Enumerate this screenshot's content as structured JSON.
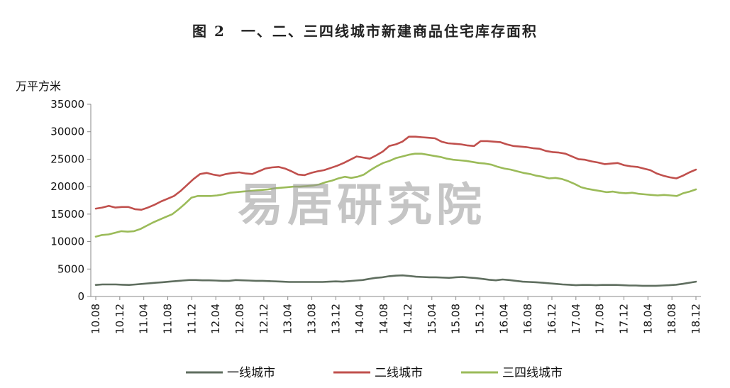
{
  "title": "图 2　一、二、三四线城市新建商品住宅库存面积",
  "watermark": "易居研究院",
  "chart_data": {
    "type": "line",
    "ylabel": "万平方米",
    "ylim": [
      0,
      35000
    ],
    "yticks": [
      0,
      5000,
      10000,
      15000,
      20000,
      25000,
      30000,
      35000
    ],
    "x_tick_labels": [
      "10.08",
      "10.12",
      "11.04",
      "11.08",
      "11.12",
      "12.04",
      "12.08",
      "12.12",
      "13.04",
      "13.08",
      "13.12",
      "14.04",
      "14.08",
      "14.12",
      "15.04",
      "15.08",
      "15.12",
      "16.04",
      "16.08",
      "16.12",
      "17.04",
      "17.08",
      "17.12",
      "18.04",
      "18.08",
      "18.12"
    ],
    "legend_position": "bottom",
    "grid": false,
    "series": [
      {
        "name": "一线城市",
        "color": "#5f6e5f",
        "values": [
          2100,
          2200,
          2200,
          2200,
          2150,
          2100,
          2200,
          2300,
          2400,
          2500,
          2600,
          2700,
          2800,
          2900,
          3000,
          3000,
          2950,
          2950,
          2900,
          2850,
          2850,
          3000,
          2950,
          2900,
          2850,
          2850,
          2800,
          2750,
          2700,
          2650,
          2650,
          2650,
          2650,
          2650,
          2650,
          2700,
          2750,
          2700,
          2800,
          2900,
          3000,
          3200,
          3400,
          3500,
          3700,
          3800,
          3850,
          3750,
          3600,
          3550,
          3500,
          3500,
          3450,
          3400,
          3500,
          3550,
          3450,
          3350,
          3200,
          3050,
          2950,
          3100,
          3000,
          2850,
          2700,
          2650,
          2600,
          2500,
          2400,
          2300,
          2200,
          2150,
          2050,
          2100,
          2100,
          2050,
          2100,
          2100,
          2100,
          2050,
          2000,
          2000,
          1950,
          1950,
          1950,
          2000,
          2050,
          2150,
          2300,
          2500,
          2700
        ]
      },
      {
        "name": "二线城市",
        "color": "#c0504d",
        "values": [
          16000,
          16200,
          16500,
          16200,
          16300,
          16300,
          15900,
          15800,
          16200,
          16700,
          17300,
          17800,
          18300,
          19200,
          20300,
          21400,
          22300,
          22500,
          22200,
          22000,
          22300,
          22500,
          22600,
          22400,
          22300,
          22800,
          23300,
          23500,
          23600,
          23300,
          22800,
          22200,
          22100,
          22500,
          22800,
          23000,
          23400,
          23800,
          24300,
          24900,
          25500,
          25300,
          25100,
          25700,
          26400,
          27400,
          27700,
          28200,
          29100,
          29100,
          29000,
          28900,
          28800,
          28200,
          27900,
          27800,
          27700,
          27500,
          27400,
          28300,
          28300,
          28200,
          28100,
          27700,
          27400,
          27300,
          27200,
          27000,
          26900,
          26500,
          26300,
          26200,
          26000,
          25500,
          25000,
          24900,
          24600,
          24400,
          24100,
          24200,
          24300,
          23900,
          23700,
          23600,
          23300,
          23000,
          22400,
          22000,
          21700,
          21500,
          22000,
          22600,
          23100
        ]
      },
      {
        "name": "三四线城市",
        "color": "#9bbb59",
        "values": [
          10900,
          11200,
          11300,
          11600,
          11900,
          11800,
          11900,
          12300,
          12900,
          13500,
          14000,
          14500,
          15000,
          15900,
          16900,
          18000,
          18300,
          18300,
          18300,
          18400,
          18600,
          18900,
          19000,
          19100,
          19200,
          19300,
          19400,
          19500,
          19700,
          19800,
          19900,
          20000,
          20000,
          20100,
          20200,
          20400,
          20800,
          21100,
          21500,
          21800,
          21600,
          21800,
          22200,
          23000,
          23700,
          24300,
          24700,
          25200,
          25500,
          25800,
          26000,
          26000,
          25800,
          25600,
          25400,
          25100,
          24900,
          24800,
          24700,
          24500,
          24300,
          24200,
          24000,
          23600,
          23300,
          23100,
          22800,
          22500,
          22300,
          22000,
          21800,
          21500,
          21600,
          21400,
          21000,
          20500,
          19900,
          19600,
          19400,
          19200,
          19000,
          19100,
          18900,
          18800,
          18900,
          18700,
          18600,
          18500,
          18400,
          18500,
          18400,
          18300,
          18800,
          19100,
          19500
        ]
      }
    ]
  }
}
